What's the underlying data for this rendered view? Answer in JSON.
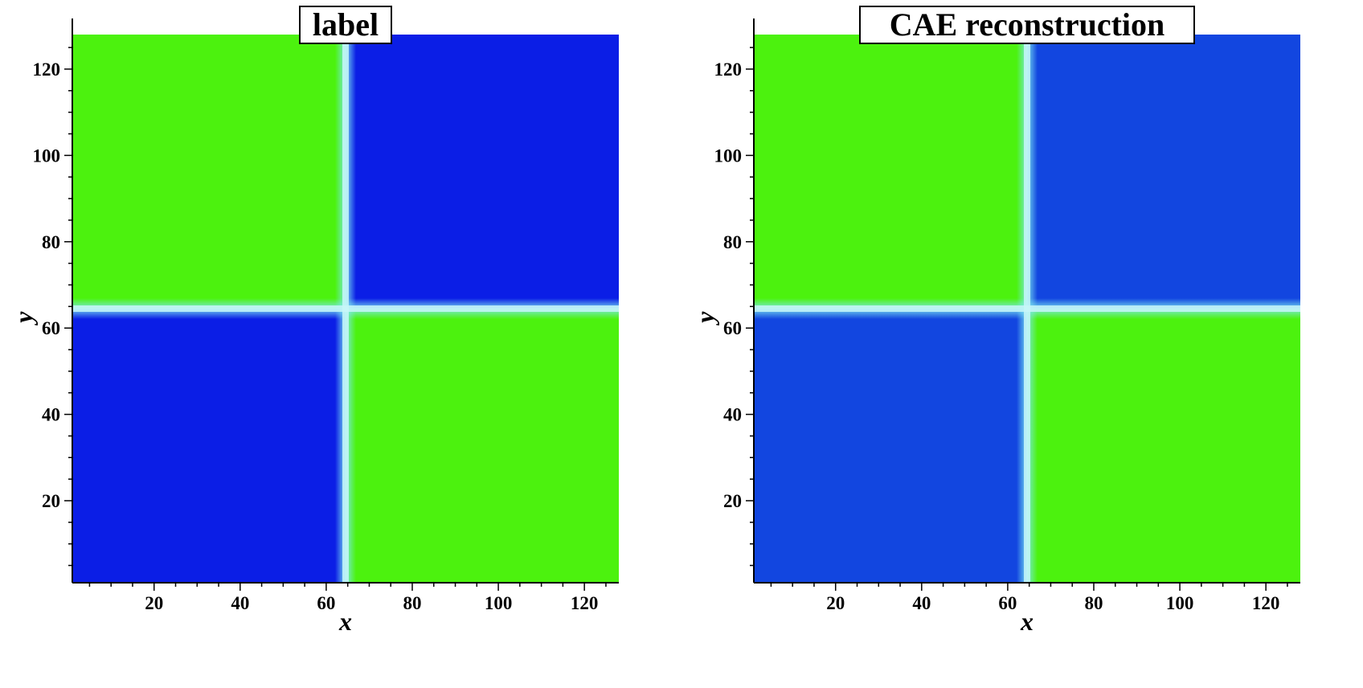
{
  "chart_data": [
    {
      "type": "heatmap",
      "title": "label",
      "xlabel": "x",
      "ylabel": "y",
      "xlim": [
        1,
        128
      ],
      "ylim": [
        1,
        128
      ],
      "xticks": [
        20,
        40,
        60,
        80,
        100,
        120
      ],
      "yticks": [
        20,
        40,
        60,
        80,
        100,
        120
      ],
      "interface_x": 64.5,
      "interface_y": 64.5,
      "quadrants": {
        "top_left": "green",
        "top_right": "blue",
        "bottom_left": "blue",
        "bottom_right": "green"
      },
      "colors": {
        "green": "#4cf20e",
        "blue": "#0b1ee6",
        "interface": "#7ee8f0"
      },
      "grid": false
    },
    {
      "type": "heatmap",
      "title": "CAE reconstruction",
      "xlabel": "x",
      "ylabel": "y",
      "xlim": [
        1,
        128
      ],
      "ylim": [
        1,
        128
      ],
      "xticks": [
        20,
        40,
        60,
        80,
        100,
        120
      ],
      "yticks": [
        20,
        40,
        60,
        80,
        100,
        120
      ],
      "interface_x": 64.5,
      "interface_y": 64.5,
      "quadrants": {
        "top_left": "green",
        "top_right": "blue",
        "bottom_left": "blue",
        "bottom_right": "green"
      },
      "colors": {
        "green": "#4cf20e",
        "blue": "#1246e0",
        "interface": "#7ee8f0"
      },
      "grid": false
    }
  ]
}
